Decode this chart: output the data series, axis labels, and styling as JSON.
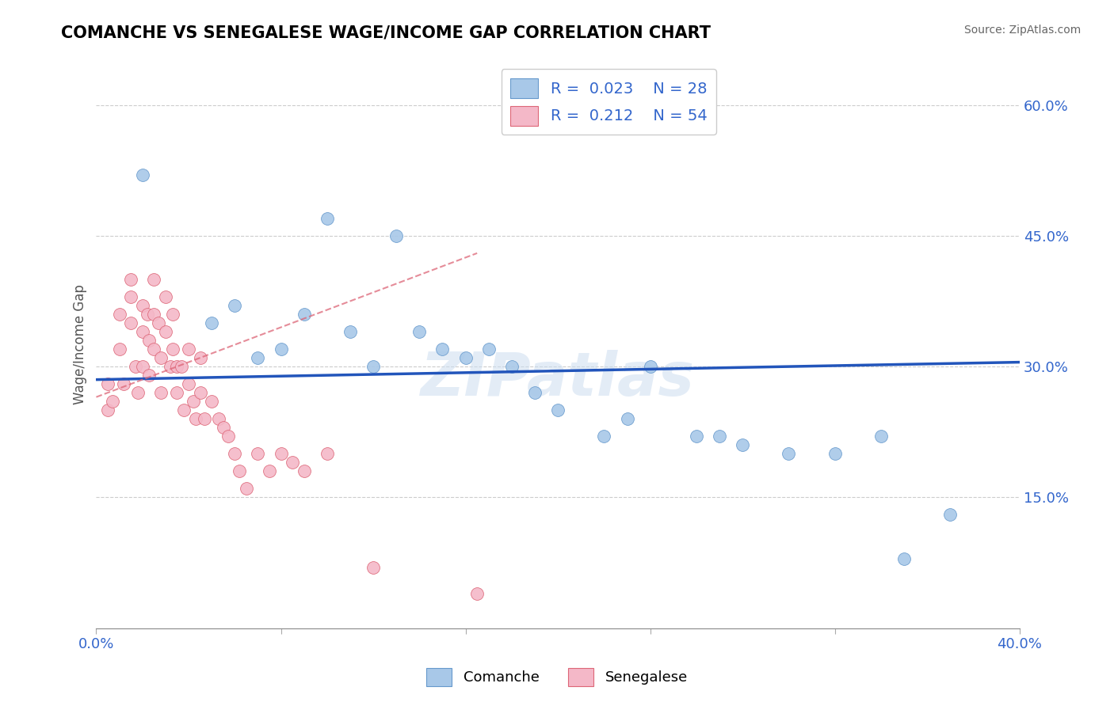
{
  "title": "COMANCHE VS SENEGALESE WAGE/INCOME GAP CORRELATION CHART",
  "source": "Source: ZipAtlas.com",
  "ylabel": "Wage/Income Gap",
  "xlim": [
    0.0,
    0.4
  ],
  "ylim": [
    0.0,
    0.65
  ],
  "ytick_labels_right": [
    "15.0%",
    "30.0%",
    "45.0%",
    "60.0%"
  ],
  "ytick_vals_right": [
    0.15,
    0.3,
    0.45,
    0.6
  ],
  "comanche_color": "#a8c8e8",
  "senegalese_color": "#f4b8c8",
  "trend_comanche_color": "#2255bb",
  "trend_senegalese_color": "#dd6677",
  "R_comanche": 0.023,
  "N_comanche": 28,
  "R_senegalese": 0.212,
  "N_senegalese": 54,
  "watermark": "ZIPatlas",
  "background_color": "#ffffff",
  "comanche_x": [
    0.02,
    0.05,
    0.06,
    0.07,
    0.08,
    0.09,
    0.1,
    0.11,
    0.12,
    0.13,
    0.14,
    0.15,
    0.16,
    0.17,
    0.18,
    0.19,
    0.2,
    0.22,
    0.23,
    0.24,
    0.26,
    0.27,
    0.28,
    0.3,
    0.32,
    0.34,
    0.35,
    0.37
  ],
  "comanche_y": [
    0.52,
    0.35,
    0.37,
    0.31,
    0.32,
    0.36,
    0.47,
    0.34,
    0.3,
    0.45,
    0.34,
    0.32,
    0.31,
    0.32,
    0.3,
    0.27,
    0.25,
    0.22,
    0.24,
    0.3,
    0.22,
    0.22,
    0.21,
    0.2,
    0.2,
    0.22,
    0.08,
    0.13
  ],
  "senegalese_x": [
    0.005,
    0.005,
    0.007,
    0.01,
    0.01,
    0.012,
    0.015,
    0.015,
    0.015,
    0.017,
    0.018,
    0.02,
    0.02,
    0.02,
    0.022,
    0.023,
    0.023,
    0.025,
    0.025,
    0.025,
    0.027,
    0.028,
    0.028,
    0.03,
    0.03,
    0.032,
    0.033,
    0.033,
    0.035,
    0.035,
    0.037,
    0.038,
    0.04,
    0.04,
    0.042,
    0.043,
    0.045,
    0.045,
    0.047,
    0.05,
    0.053,
    0.055,
    0.057,
    0.06,
    0.062,
    0.065,
    0.07,
    0.075,
    0.08,
    0.085,
    0.09,
    0.1,
    0.12,
    0.165
  ],
  "senegalese_y": [
    0.28,
    0.25,
    0.26,
    0.36,
    0.32,
    0.28,
    0.4,
    0.38,
    0.35,
    0.3,
    0.27,
    0.37,
    0.34,
    0.3,
    0.36,
    0.33,
    0.29,
    0.4,
    0.36,
    0.32,
    0.35,
    0.31,
    0.27,
    0.38,
    0.34,
    0.3,
    0.36,
    0.32,
    0.3,
    0.27,
    0.3,
    0.25,
    0.32,
    0.28,
    0.26,
    0.24,
    0.31,
    0.27,
    0.24,
    0.26,
    0.24,
    0.23,
    0.22,
    0.2,
    0.18,
    0.16,
    0.2,
    0.18,
    0.2,
    0.19,
    0.18,
    0.2,
    0.07,
    0.04
  ],
  "trend_comanche_x0": 0.0,
  "trend_comanche_y0": 0.285,
  "trend_comanche_x1": 0.4,
  "trend_comanche_y1": 0.305,
  "trend_senegalese_x0": 0.0,
  "trend_senegalese_y0": 0.265,
  "trend_senegalese_x1": 0.165,
  "trend_senegalese_y1": 0.43
}
